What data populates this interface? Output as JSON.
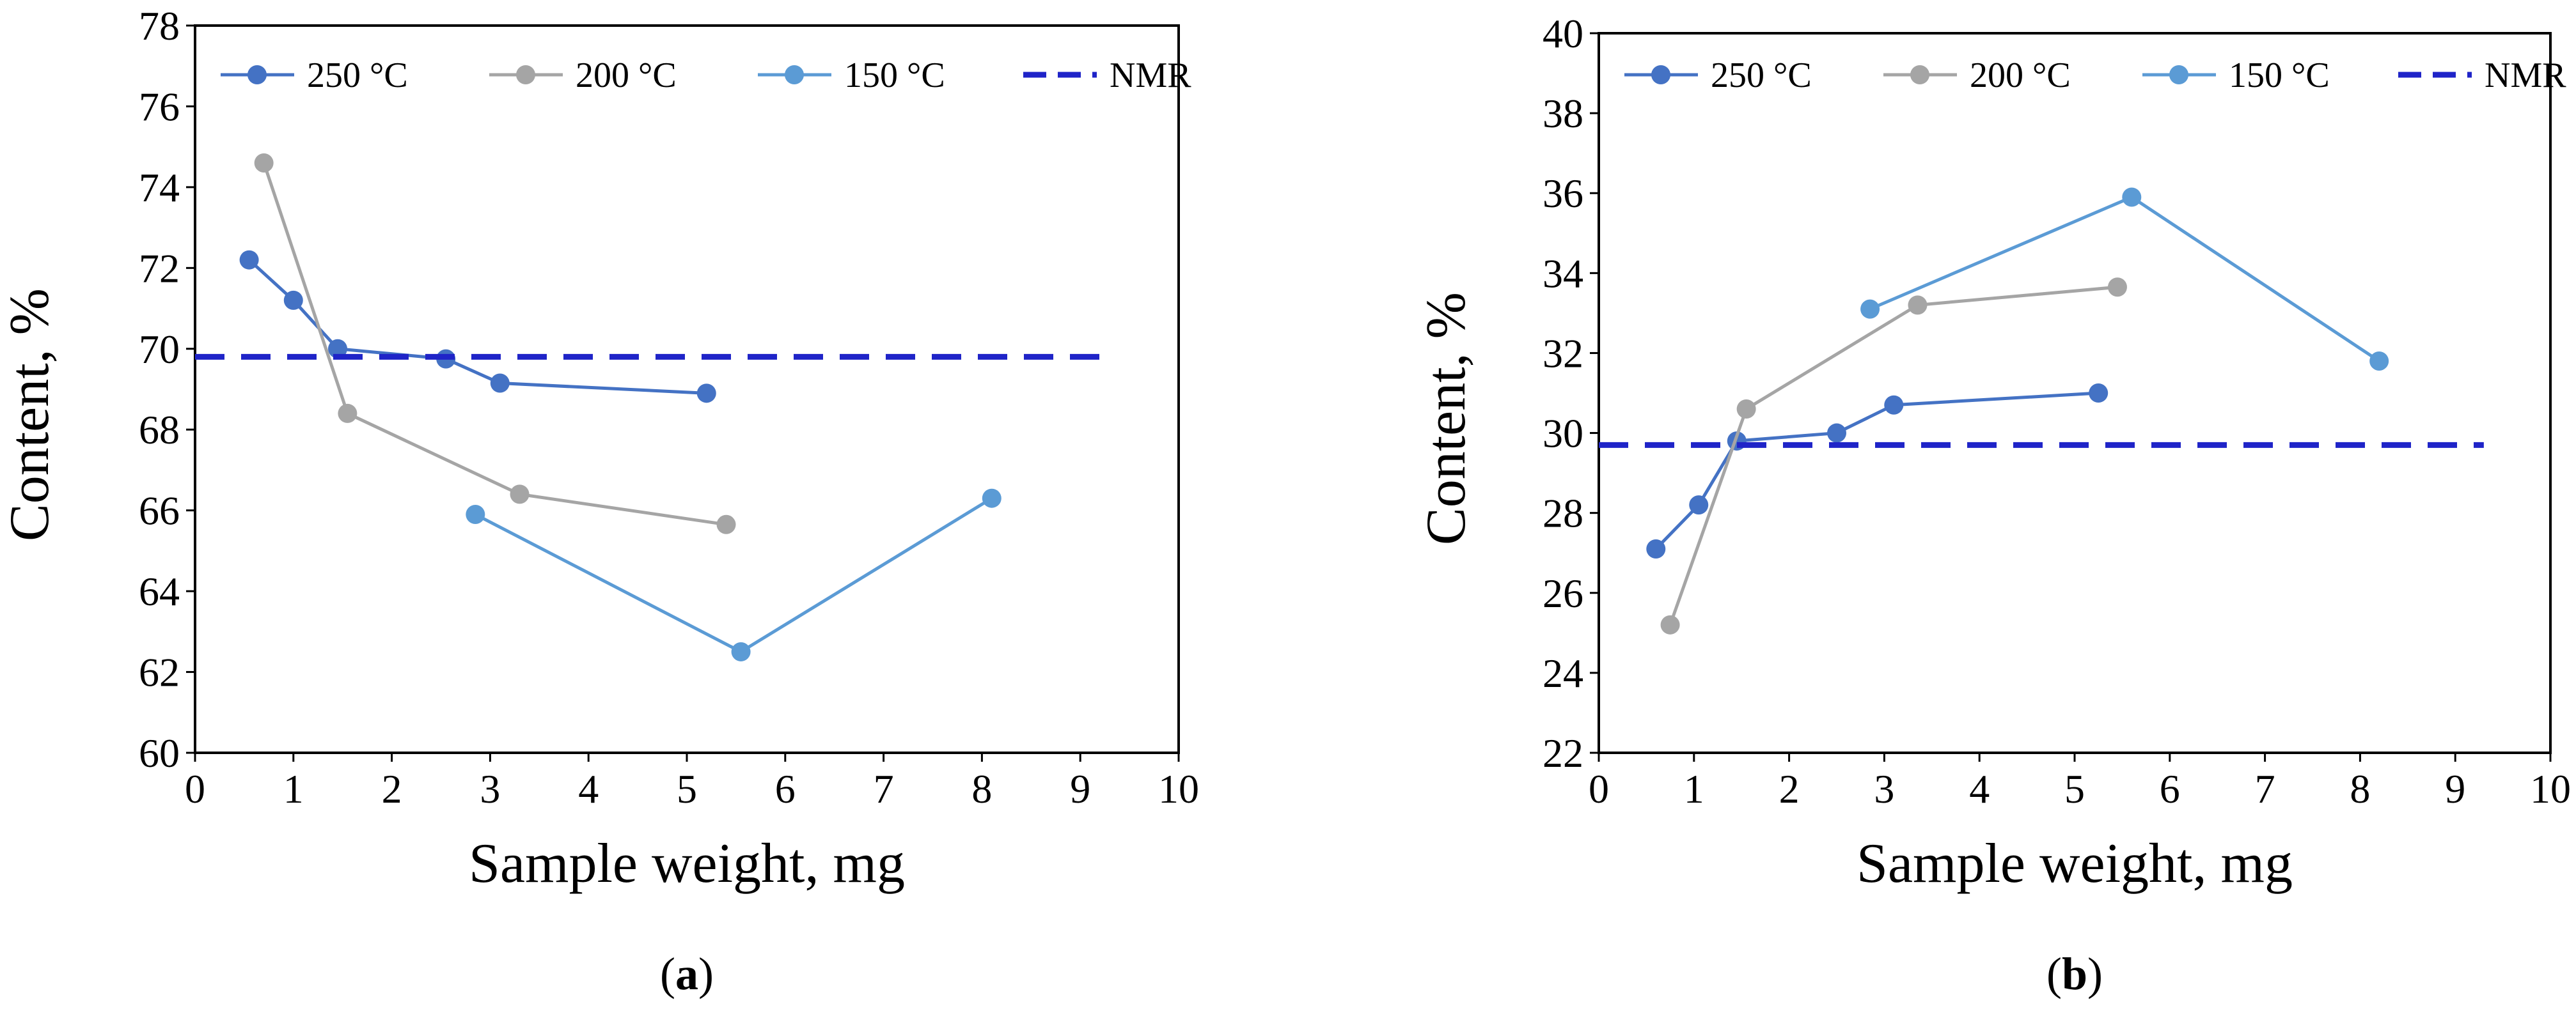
{
  "chart_data": [
    {
      "type": "line",
      "panel_label": "a",
      "xlabel": "Sample weight, mg",
      "ylabel": "Content, %",
      "xlim": [
        0,
        10
      ],
      "ylim": [
        60,
        78
      ],
      "xticks": [
        "0",
        "1",
        "2",
        "3",
        "4",
        "5",
        "6",
        "7",
        "8",
        "9",
        "10"
      ],
      "yticks": [
        "60",
        "62",
        "64",
        "66",
        "68",
        "70",
        "72",
        "74",
        "76",
        "78"
      ],
      "grid": false,
      "legend_position": "top",
      "series": [
        {
          "name": "250 °C",
          "color": "#4472C4",
          "style": "line-marker",
          "x": [
            0.55,
            1.0,
            1.45,
            2.55,
            3.1,
            5.2
          ],
          "y": [
            72.2,
            71.2,
            70.0,
            69.75,
            69.15,
            68.9
          ]
        },
        {
          "name": "200 °C",
          "color": "#A5A5A5",
          "style": "line-marker",
          "x": [
            0.7,
            1.55,
            3.3,
            5.4
          ],
          "y": [
            74.6,
            68.4,
            66.4,
            65.65
          ]
        },
        {
          "name": "150 °C",
          "color": "#5B9BD5",
          "style": "line-marker",
          "x": [
            2.85,
            5.55,
            8.1
          ],
          "y": [
            65.9,
            62.5,
            66.3
          ]
        },
        {
          "name": "NMR",
          "color": "#1F24C8",
          "style": "dashed",
          "x": [
            0,
            9.3
          ],
          "y": [
            69.8,
            69.8
          ]
        }
      ]
    },
    {
      "type": "line",
      "panel_label": "b",
      "xlabel": "Sample weight, mg",
      "ylabel": "Content, %",
      "xlim": [
        0,
        10
      ],
      "ylim": [
        22,
        40
      ],
      "xticks": [
        "0",
        "1",
        "2",
        "3",
        "4",
        "5",
        "6",
        "7",
        "8",
        "9",
        "10"
      ],
      "yticks": [
        "22",
        "24",
        "26",
        "28",
        "30",
        "32",
        "34",
        "36",
        "38",
        "40"
      ],
      "grid": false,
      "legend_position": "top",
      "series": [
        {
          "name": "250 °C",
          "color": "#4472C4",
          "style": "line-marker",
          "x": [
            0.6,
            1.05,
            1.45,
            2.5,
            3.1,
            5.25
          ],
          "y": [
            27.1,
            28.2,
            29.8,
            30.0,
            30.7,
            31.0
          ]
        },
        {
          "name": "200 °C",
          "color": "#A5A5A5",
          "style": "line-marker",
          "x": [
            0.75,
            1.55,
            3.35,
            5.45
          ],
          "y": [
            25.2,
            30.6,
            33.2,
            33.65
          ]
        },
        {
          "name": "150 °C",
          "color": "#5B9BD5",
          "style": "line-marker",
          "x": [
            2.85,
            5.6,
            8.2
          ],
          "y": [
            33.1,
            35.9,
            31.8
          ]
        },
        {
          "name": "NMR",
          "color": "#1F24C8",
          "style": "dashed",
          "x": [
            0,
            9.3
          ],
          "y": [
            29.7,
            29.7
          ]
        }
      ]
    }
  ]
}
